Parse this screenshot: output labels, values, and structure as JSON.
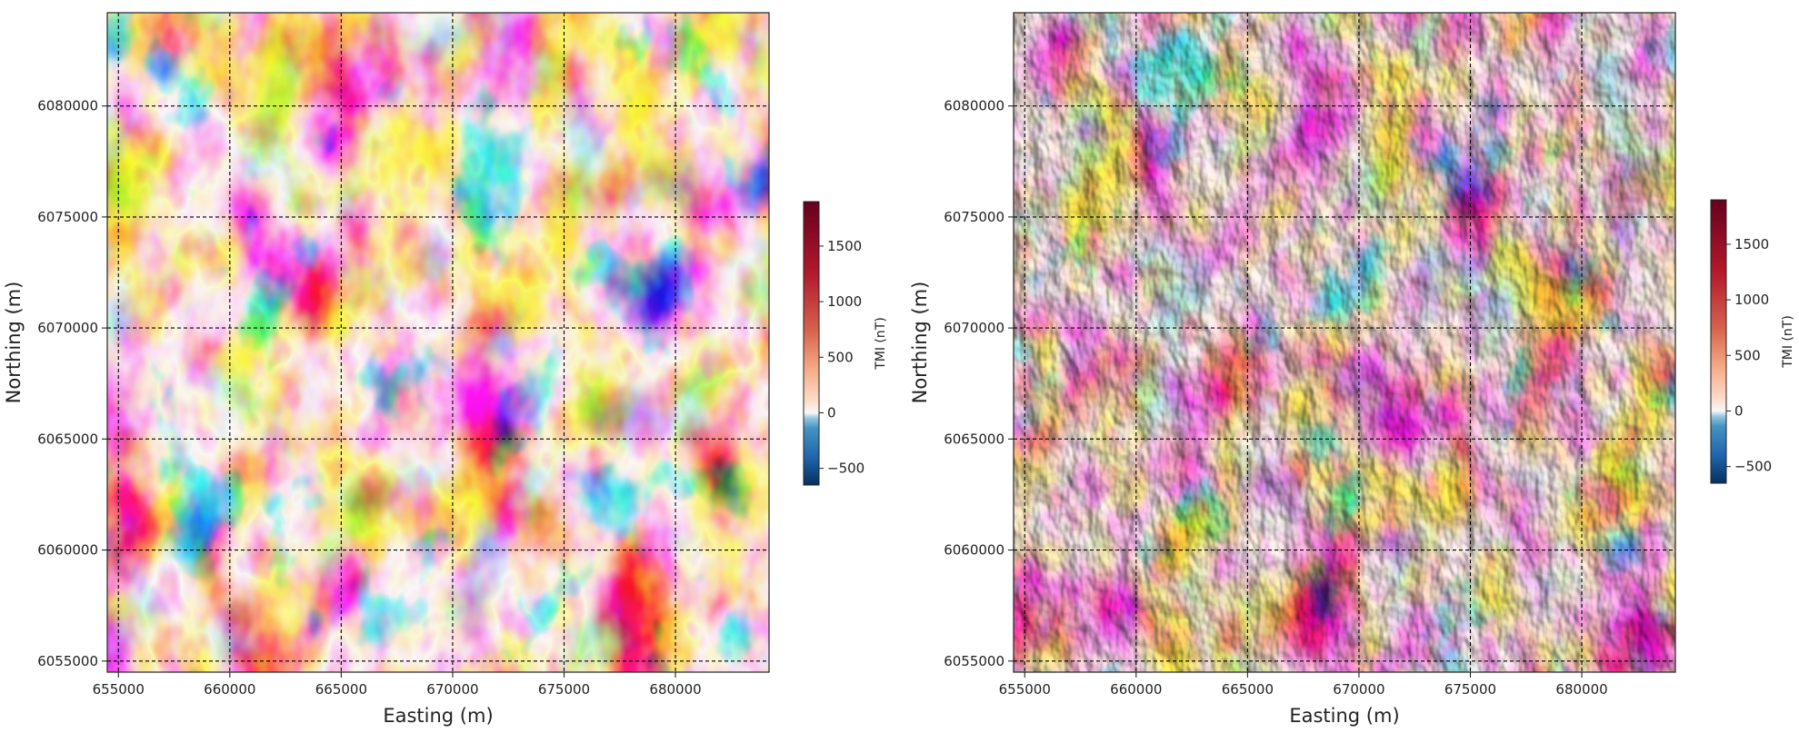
{
  "chart_data": [
    {
      "type": "heatmap",
      "title": "",
      "xlabel": "Easting (m)",
      "ylabel": "Northing (m)",
      "xlim": [
        654500,
        684200
      ],
      "ylim": [
        6054500,
        6084200
      ],
      "xticks": [
        655000,
        660000,
        665000,
        670000,
        675000,
        680000
      ],
      "yticks": [
        6055000,
        6060000,
        6065000,
        6070000,
        6075000,
        6080000
      ],
      "xtick_labels": [
        "655000",
        "660000",
        "665000",
        "670000",
        "675000",
        "680000"
      ],
      "ytick_labels": [
        "6055000",
        "6060000",
        "6065000",
        "6070000",
        "6075000",
        "6080000"
      ],
      "grid": true,
      "colormap": "RdBu_r",
      "shaded": false,
      "colorbar": {
        "label": "TMI (nT)",
        "range": [
          -650,
          1900
        ],
        "ticks": [
          -500,
          0,
          500,
          1000,
          1500
        ],
        "tick_labels": [
          "−500",
          "0",
          "500",
          "1000",
          "1500"
        ]
      }
    },
    {
      "type": "heatmap",
      "title": "",
      "xlabel": "Easting (m)",
      "ylabel": "Northing (m)",
      "xlim": [
        654500,
        684200
      ],
      "ylim": [
        6054500,
        6084200
      ],
      "xticks": [
        655000,
        660000,
        665000,
        670000,
        675000,
        680000
      ],
      "yticks": [
        6055000,
        6060000,
        6065000,
        6070000,
        6075000,
        6080000
      ],
      "xtick_labels": [
        "655000",
        "660000",
        "665000",
        "670000",
        "675000",
        "680000"
      ],
      "ytick_labels": [
        "6055000",
        "6060000",
        "6065000",
        "6070000",
        "6075000",
        "6080000"
      ],
      "grid": true,
      "colormap": "RdBu_r",
      "shaded": true,
      "colorbar": {
        "label": "TMI (nT)",
        "range": [
          -650,
          1900
        ],
        "ticks": [
          -500,
          0,
          500,
          1000,
          1500
        ],
        "tick_labels": [
          "−500",
          "0",
          "500",
          "1000",
          "1500"
        ]
      }
    }
  ]
}
